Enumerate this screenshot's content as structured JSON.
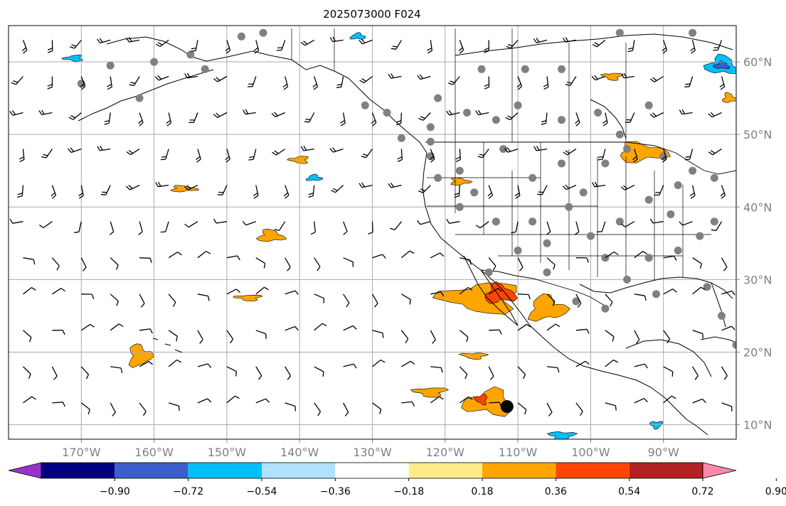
{
  "title": "2025073000 F024",
  "map": {
    "lon_range": [
      -180,
      -80
    ],
    "lat_range": [
      8,
      65
    ],
    "lon_ticks": [
      {
        "value": -170,
        "label": "170°W"
      },
      {
        "value": -160,
        "label": "160°W"
      },
      {
        "value": -150,
        "label": "150°W"
      },
      {
        "value": -140,
        "label": "140°W"
      },
      {
        "value": -130,
        "label": "130°W"
      },
      {
        "value": -120,
        "label": "120°W"
      },
      {
        "value": -110,
        "label": "110°W"
      },
      {
        "value": -100,
        "label": "100°W"
      },
      {
        "value": -90,
        "label": "90°W"
      }
    ],
    "lat_ticks": [
      {
        "value": 10,
        "label": "10°N"
      },
      {
        "value": 20,
        "label": "20°N"
      },
      {
        "value": 30,
        "label": "30°N"
      },
      {
        "value": 40,
        "label": "40°N"
      },
      {
        "value": 50,
        "label": "50°N"
      },
      {
        "value": 60,
        "label": "60°N"
      }
    ],
    "grid": true,
    "gridline_color": "#aaaaaa",
    "coastline_color": "#000000",
    "cloud_cover_marker_color": "#808080"
  },
  "colorbar": {
    "bounds": [
      -0.9,
      -0.72,
      -0.54,
      -0.36,
      -0.18,
      0.18,
      0.36,
      0.54,
      0.72,
      0.9
    ],
    "tick_labels": [
      "−0.90",
      "−0.72",
      "−0.54",
      "−0.36",
      "−0.18",
      "0.18",
      "0.36",
      "0.54",
      "0.72",
      "0.90"
    ],
    "colors": [
      "#9932cc",
      "#000080",
      "#3a5fcd",
      "#00bfff",
      "#b0e2ff",
      "#ffffff",
      "#ffeb8a",
      "#ffa500",
      "#ff4500",
      "#b22222",
      "#ff88aa"
    ],
    "extend": "both"
  },
  "chart_data": {
    "type": "heatmap",
    "title": "2025073000 F024",
    "xlabel": "",
    "ylabel": "",
    "xlim": [
      -180,
      -80
    ],
    "ylim": [
      8,
      65
    ],
    "positive_regions": [
      {
        "lon": -115,
        "lat": 27.5,
        "rx": 6,
        "ry": 2.5,
        "level": 0.36
      },
      {
        "lon": -112.5,
        "lat": 28,
        "rx": 2.5,
        "ry": 1.5,
        "level": 0.54
      },
      {
        "lon": -106,
        "lat": 26,
        "rx": 3,
        "ry": 2,
        "level": 0.36
      },
      {
        "lon": -114,
        "lat": 13,
        "rx": 4,
        "ry": 2,
        "level": 0.36
      },
      {
        "lon": -115,
        "lat": 13.5,
        "rx": 1,
        "ry": 0.8,
        "level": 0.54
      },
      {
        "lon": -162,
        "lat": 19.5,
        "rx": 1.8,
        "ry": 1.8,
        "level": 0.36
      },
      {
        "lon": -122,
        "lat": 14.5,
        "rx": 2.5,
        "ry": 0.8,
        "level": 0.36
      },
      {
        "lon": -144,
        "lat": 36,
        "rx": 2,
        "ry": 1,
        "level": 0.36
      },
      {
        "lon": -93,
        "lat": 47.5,
        "rx": 4,
        "ry": 1.5,
        "level": 0.36
      },
      {
        "lon": -97,
        "lat": 58,
        "rx": 1.5,
        "ry": 0.6,
        "level": 0.36
      },
      {
        "lon": -118,
        "lat": 43.5,
        "rx": 1.5,
        "ry": 0.6,
        "level": 0.36
      },
      {
        "lon": -140,
        "lat": 46.5,
        "rx": 1.5,
        "ry": 0.6,
        "level": 0.36
      },
      {
        "lon": -116,
        "lat": 19.5,
        "rx": 2,
        "ry": 0.5,
        "level": 0.36
      },
      {
        "lon": -147,
        "lat": 27.5,
        "rx": 2,
        "ry": 0.5,
        "level": 0.36
      },
      {
        "lon": -156,
        "lat": 42.5,
        "rx": 2,
        "ry": 0.5,
        "level": 0.36
      },
      {
        "lon": -81,
        "lat": 55,
        "rx": 1,
        "ry": 0.8,
        "level": 0.36
      }
    ],
    "negative_regions": [
      {
        "lon": -82,
        "lat": 59.5,
        "rx": 2.5,
        "ry": 1.5,
        "level": -0.54
      },
      {
        "lon": -82,
        "lat": 59.5,
        "rx": 1.2,
        "ry": 0.6,
        "level": -0.72
      },
      {
        "lon": -138,
        "lat": 44,
        "rx": 1.2,
        "ry": 0.5,
        "level": -0.54
      },
      {
        "lon": -104,
        "lat": 8.5,
        "rx": 2,
        "ry": 0.7,
        "level": -0.54
      },
      {
        "lon": -91,
        "lat": 10,
        "rx": 1,
        "ry": 0.6,
        "level": -0.54
      },
      {
        "lon": -171,
        "lat": 60.5,
        "rx": 1.5,
        "ry": 0.5,
        "level": -0.54
      },
      {
        "lon": -132,
        "lat": 63.5,
        "rx": 1.2,
        "ry": 0.5,
        "level": -0.54
      }
    ],
    "hurricane_marker": {
      "lon": -111.5,
      "lat": 12.5
    }
  }
}
